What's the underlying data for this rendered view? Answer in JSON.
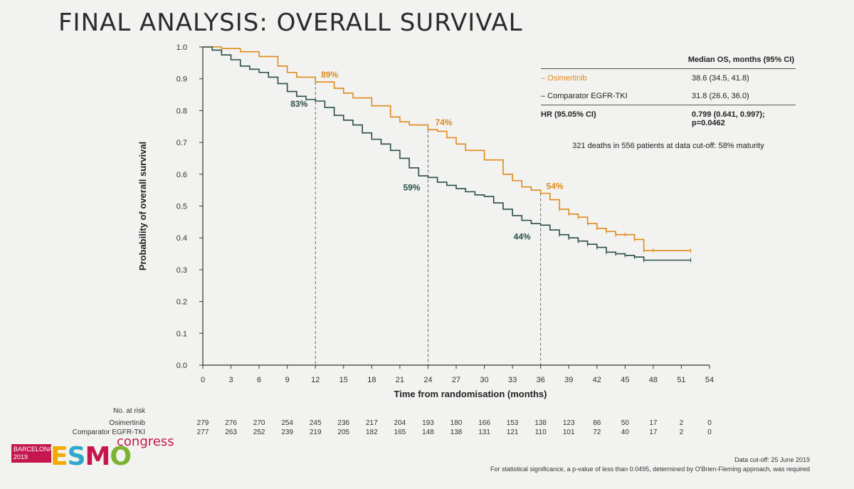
{
  "title": "FINAL ANALYSIS: OVERALL SURVIVAL",
  "chart_data": {
    "type": "line",
    "xlabel": "Time from randomisation (months)",
    "ylabel": "Probability of overall survival",
    "xlim": [
      0,
      54
    ],
    "ylim": [
      0,
      1
    ],
    "xticks": [
      0,
      3,
      6,
      9,
      12,
      15,
      18,
      21,
      24,
      27,
      30,
      33,
      36,
      39,
      42,
      45,
      48,
      51,
      54
    ],
    "yticks": [
      "0.0",
      "0.1",
      "0.2",
      "0.3",
      "0.4",
      "0.5",
      "0.6",
      "0.7",
      "0.8",
      "0.9",
      "1.0"
    ],
    "series": [
      {
        "name": "Osimertinib",
        "color": "#e08a1a",
        "points": [
          [
            0,
            1.0
          ],
          [
            2,
            0.995
          ],
          [
            4,
            0.985
          ],
          [
            6,
            0.97
          ],
          [
            8,
            0.94
          ],
          [
            9,
            0.92
          ],
          [
            10,
            0.905
          ],
          [
            12,
            0.89
          ],
          [
            14,
            0.87
          ],
          [
            15,
            0.855
          ],
          [
            16,
            0.84
          ],
          [
            18,
            0.815
          ],
          [
            20,
            0.78
          ],
          [
            21,
            0.765
          ],
          [
            22,
            0.755
          ],
          [
            24,
            0.74
          ],
          [
            25,
            0.735
          ],
          [
            26,
            0.715
          ],
          [
            27,
            0.695
          ],
          [
            28,
            0.675
          ],
          [
            30,
            0.645
          ],
          [
            32,
            0.6
          ],
          [
            33,
            0.58
          ],
          [
            34,
            0.56
          ],
          [
            35,
            0.55
          ],
          [
            36,
            0.54
          ],
          [
            37,
            0.52
          ],
          [
            38,
            0.49
          ],
          [
            39,
            0.475
          ],
          [
            40,
            0.465
          ],
          [
            41,
            0.445
          ],
          [
            42,
            0.43
          ],
          [
            43,
            0.42
          ],
          [
            44,
            0.41
          ],
          [
            45,
            0.41
          ],
          [
            46,
            0.395
          ],
          [
            47,
            0.36
          ],
          [
            48,
            0.36
          ],
          [
            52,
            0.36
          ]
        ]
      },
      {
        "name": "Comparator EGFR-TKI",
        "color": "#2a4e4a",
        "points": [
          [
            0,
            1.0
          ],
          [
            1,
            0.99
          ],
          [
            2,
            0.975
          ],
          [
            3,
            0.96
          ],
          [
            4,
            0.94
          ],
          [
            5,
            0.93
          ],
          [
            6,
            0.92
          ],
          [
            7,
            0.905
          ],
          [
            8,
            0.885
          ],
          [
            9,
            0.86
          ],
          [
            10,
            0.845
          ],
          [
            11,
            0.835
          ],
          [
            12,
            0.83
          ],
          [
            13,
            0.81
          ],
          [
            14,
            0.785
          ],
          [
            15,
            0.77
          ],
          [
            16,
            0.755
          ],
          [
            17,
            0.73
          ],
          [
            18,
            0.71
          ],
          [
            19,
            0.695
          ],
          [
            20,
            0.675
          ],
          [
            21,
            0.65
          ],
          [
            22,
            0.62
          ],
          [
            23,
            0.595
          ],
          [
            24,
            0.59
          ],
          [
            25,
            0.575
          ],
          [
            26,
            0.565
          ],
          [
            27,
            0.555
          ],
          [
            28,
            0.545
          ],
          [
            29,
            0.535
          ],
          [
            30,
            0.53
          ],
          [
            31,
            0.51
          ],
          [
            32,
            0.49
          ],
          [
            33,
            0.47
          ],
          [
            34,
            0.455
          ],
          [
            35,
            0.445
          ],
          [
            36,
            0.44
          ],
          [
            37,
            0.425
          ],
          [
            38,
            0.41
          ],
          [
            39,
            0.4
          ],
          [
            40,
            0.39
          ],
          [
            41,
            0.38
          ],
          [
            42,
            0.37
          ],
          [
            43,
            0.355
          ],
          [
            44,
            0.35
          ],
          [
            45,
            0.345
          ],
          [
            46,
            0.34
          ],
          [
            47,
            0.33
          ],
          [
            52,
            0.33
          ]
        ]
      }
    ],
    "reference_lines_x": [
      12,
      24,
      36
    ],
    "annotations": [
      {
        "text": "89%",
        "x": 12,
        "y": 0.89,
        "series": "Osimertinib"
      },
      {
        "text": "74%",
        "x": 24,
        "y": 0.74,
        "series": "Osimertinib"
      },
      {
        "text": "54%",
        "x": 36,
        "y": 0.54,
        "series": "Osimertinib"
      },
      {
        "text": "83%",
        "x": 12,
        "y": 0.83,
        "series": "Comparator EGFR-TKI"
      },
      {
        "text": "59%",
        "x": 24,
        "y": 0.59,
        "series": "Comparator EGFR-TKI"
      },
      {
        "text": "44%",
        "x": 36,
        "y": 0.44,
        "series": "Comparator EGFR-TKI"
      }
    ]
  },
  "legend": {
    "header": "Median OS, months (95% CI)",
    "rows": [
      {
        "label": "– Osimertinib",
        "value": "38.6 (34.5, 41.8)"
      },
      {
        "label": "– Comparator EGFR-TKI",
        "value": "31.8 (26.6, 36.0)"
      }
    ],
    "hr_label": "HR (95.05% CI)",
    "hr_value": "0.799 (0.641, 0.997); p=0.0462",
    "note": "321 deaths in 556 patients at data cut-off: 58% maturity"
  },
  "at_risk": {
    "header": "No. at risk",
    "rows": [
      {
        "label": "Osimertinib",
        "values": [
          "279",
          "276",
          "270",
          "254",
          "245",
          "236",
          "217",
          "204",
          "193",
          "180",
          "166",
          "153",
          "138",
          "123",
          "86",
          "50",
          "17",
          "2",
          "0"
        ]
      },
      {
        "label": "Comparator EGFR-TKI",
        "values": [
          "277",
          "263",
          "252",
          "239",
          "219",
          "205",
          "182",
          "165",
          "148",
          "138",
          "131",
          "121",
          "110",
          "101",
          "72",
          "40",
          "17",
          "2",
          "0"
        ]
      }
    ]
  },
  "footer": {
    "cutoff": "Data cut-off: 25 June 2019",
    "significance": "For statistical significance, a p-value of less than 0.0495, determined by O'Brien-Fleming approach, was required"
  },
  "logo": {
    "city": "BARCELONA",
    "year": "2019",
    "brand": "ESMO",
    "brand_letters": [
      "E",
      "S",
      "M",
      "O"
    ],
    "suffix": "congress"
  }
}
